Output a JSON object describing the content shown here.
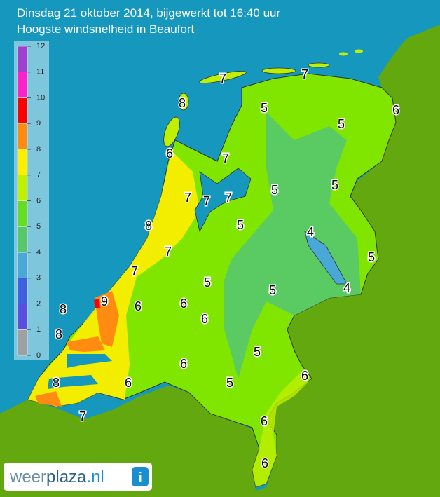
{
  "title_lines": [
    "Dinsdag 21 oktober 2014, bijgewerkt tot 16:40 uur",
    "Hoogste windsnelheid in Beaufort"
  ],
  "legend": {
    "labels": [
      0,
      1,
      2,
      3,
      4,
      5,
      6,
      7,
      8,
      9,
      10,
      11,
      12
    ],
    "colors": [
      "#a0a0a0",
      "#5a4ee0",
      "#3f5fe0",
      "#4aa8d8",
      "#56c86a",
      "#66dd22",
      "#bff000",
      "#ffee00",
      "#ff8c10",
      "#ff0000",
      "#ff20c8",
      "#a040d0"
    ]
  },
  "map_labels": [
    7,
    7,
    8,
    5,
    6,
    5,
    6,
    7,
    5,
    5,
    7,
    7,
    7,
    8,
    5,
    4,
    7,
    5,
    7,
    5,
    5,
    4,
    9,
    8,
    6,
    6,
    6,
    8,
    5,
    6,
    6,
    8,
    6,
    5,
    7,
    6,
    6
  ],
  "logo": {
    "part1": "weer",
    "part2": "plaza",
    "part3": ".nl",
    "icon": "i"
  }
}
